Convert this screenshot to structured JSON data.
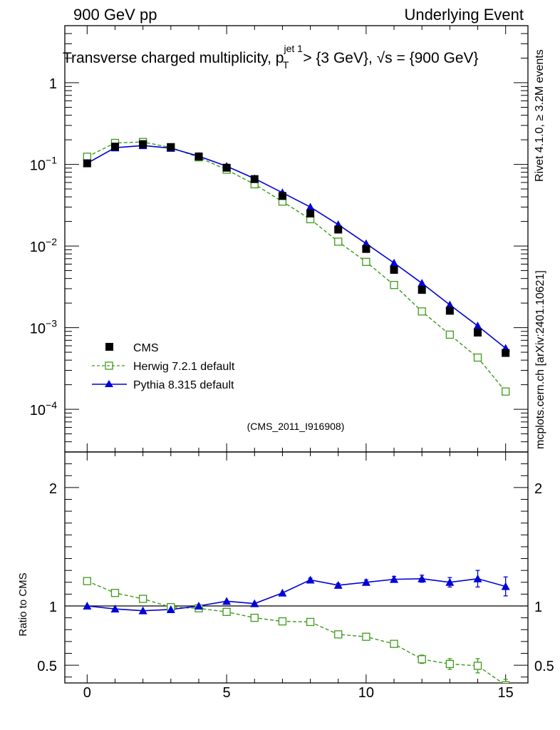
{
  "header": {
    "left": "900 GeV pp",
    "right": "Underlying Event"
  },
  "side_labels": {
    "rivet": "Rivet 4.1.0, ≥ 3.2M events",
    "mcplots": "mcplots.cern.ch [arXiv:2401.10621]"
  },
  "chart_data": {
    "type": "line",
    "title": {
      "prefix": "Transverse charged multiplicity, p",
      "sup": "jet 1",
      "sub": "T",
      "suffix": " > {3 GeV}, √s = {900 GeV}"
    },
    "watermark": "(CMS_2011_I916908)",
    "xlabel": "",
    "ylabel": "",
    "ratio_ylabel": "Ratio to CMS",
    "xlim": [
      -0.8,
      15.8
    ],
    "ylim": [
      3e-05,
      5
    ],
    "ratio_ylim": [
      0.35,
      2.3
    ],
    "x_ticks": [
      "0",
      "5",
      "10",
      "15"
    ],
    "y_ticks": [
      {
        "base": "10",
        "exp": "−4",
        "value": 0.0001
      },
      {
        "base": "10",
        "exp": "−3",
        "value": 0.001
      },
      {
        "base": "10",
        "exp": "−2",
        "value": 0.01
      },
      {
        "base": "10",
        "exp": "−1",
        "value": 0.1
      },
      {
        "base": "1",
        "exp": "",
        "value": 1
      }
    ],
    "ratio_ticks": [
      "0.5",
      "1",
      "2"
    ],
    "x": [
      0,
      1,
      2,
      3,
      4,
      5,
      6,
      7,
      8,
      9,
      10,
      11,
      12,
      13,
      14,
      15
    ],
    "series": [
      {
        "name": "CMS",
        "color": "#000000",
        "values": [
          0.103,
          0.165,
          0.177,
          0.163,
          0.125,
          0.091,
          0.066,
          0.041,
          0.025,
          0.0159,
          0.0092,
          0.0051,
          0.0029,
          0.00161,
          0.00087,
          0.00049
        ]
      },
      {
        "name": "Herwig 7.2.1 default",
        "color": "#3e9a1a",
        "values": [
          0.124,
          0.183,
          0.188,
          0.161,
          0.122,
          0.086,
          0.057,
          0.035,
          0.0213,
          0.0113,
          0.0064,
          0.00333,
          0.00158,
          0.00082,
          0.00043,
          0.000165
        ],
        "ratio": [
          1.21,
          1.11,
          1.06,
          0.99,
          0.98,
          0.95,
          0.9,
          0.87,
          0.865,
          0.76,
          0.74,
          0.68,
          0.55,
          0.51,
          0.495,
          0.33
        ],
        "ratio_err": [
          0.01,
          0.01,
          0.01,
          0.01,
          0.01,
          0.01,
          0.01,
          0.01,
          0.01,
          0.01,
          0.015,
          0.02,
          0.035,
          0.045,
          0.06,
          0.05
        ]
      },
      {
        "name": "Pythia 8.315 default",
        "color": "#0000d8",
        "values": [
          0.103,
          0.16,
          0.17,
          0.158,
          0.126,
          0.095,
          0.067,
          0.045,
          0.03,
          0.0183,
          0.0107,
          0.0062,
          0.0035,
          0.0019,
          0.00105,
          0.00056
        ],
        "ratio": [
          1.0,
          0.975,
          0.96,
          0.97,
          1.0,
          1.04,
          1.02,
          1.11,
          1.22,
          1.175,
          1.2,
          1.225,
          1.23,
          1.2,
          1.23,
          1.165
        ],
        "ratio_err": [
          0.005,
          0.005,
          0.005,
          0.01,
          0.01,
          0.01,
          0.01,
          0.01,
          0.015,
          0.015,
          0.02,
          0.025,
          0.03,
          0.04,
          0.07,
          0.08
        ]
      }
    ]
  }
}
